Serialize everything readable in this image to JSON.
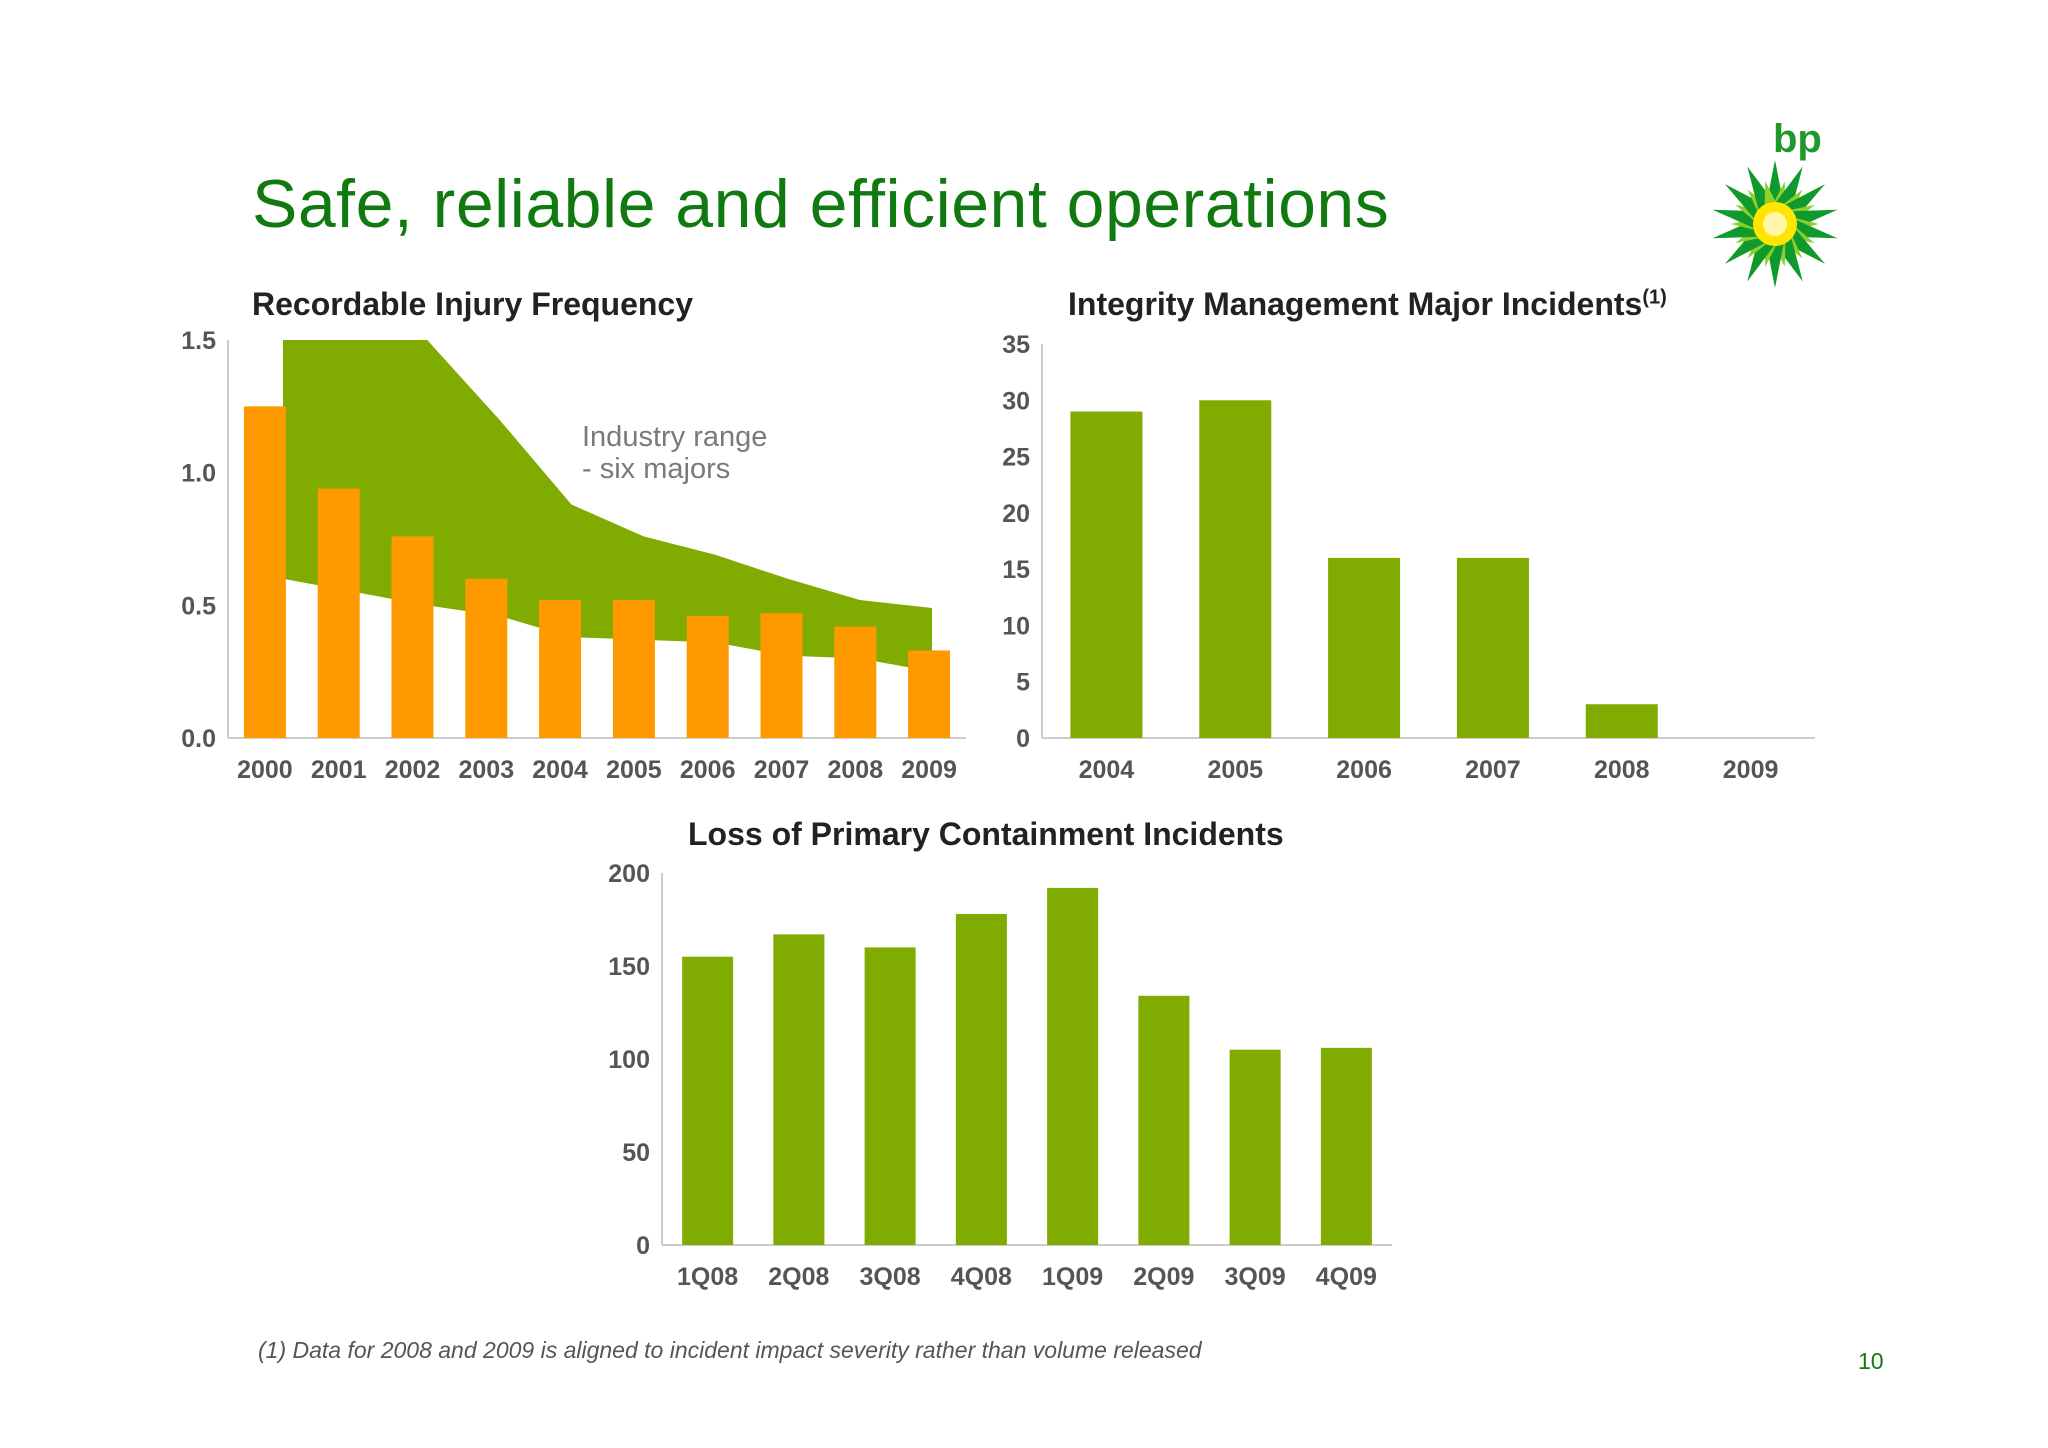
{
  "slide": {
    "title": "Safe, reliable and efficient operations",
    "footnote": "(1)  Data for 2008 and 2009 is aligned to incident impact severity rather than volume released",
    "page_number": "10",
    "logo_text": "bp"
  },
  "colors": {
    "green_title": "#107a10",
    "bar_green": "#80ab00",
    "area_green": "#80ab00",
    "bar_orange": "#ff9900",
    "axis_line": "#cccccc"
  },
  "chart_data": [
    {
      "id": "rif",
      "type": "bar",
      "title": "Recordable Injury Frequency",
      "categories": [
        "2000",
        "2001",
        "2002",
        "2003",
        "2004",
        "2005",
        "2006",
        "2007",
        "2008",
        "2009"
      ],
      "series": [
        {
          "values": [
            1.25,
            0.94,
            0.76,
            0.6,
            0.52,
            0.52,
            0.46,
            0.47,
            0.42,
            0.33
          ]
        }
      ],
      "band": {
        "label_line1": "Industry range",
        "label_line2": "- six majors",
        "upper": [
          1.5,
          1.5,
          1.5,
          1.2,
          0.88,
          0.76,
          0.69,
          0.6,
          0.52,
          0.49
        ],
        "lower": [
          0.6,
          0.55,
          0.5,
          0.46,
          0.38,
          0.37,
          0.36,
          0.31,
          0.3,
          0.25
        ]
      },
      "ylim": [
        0,
        1.5
      ],
      "yticks": [
        "0.0",
        "0.5",
        "1.0",
        "1.5"
      ],
      "ytick_values": [
        0,
        0.5,
        1.0,
        1.5
      ],
      "grid": false
    },
    {
      "id": "imm",
      "type": "bar",
      "title": "Integrity Management Major Incidents",
      "title_sup": "(1)",
      "categories": [
        "2004",
        "2005",
        "2006",
        "2007",
        "2008",
        "2009"
      ],
      "series": [
        {
          "values": [
            29,
            30,
            16,
            16,
            3,
            0
          ]
        }
      ],
      "ylim": [
        0,
        35
      ],
      "yticks": [
        "0",
        "5",
        "10",
        "15",
        "20",
        "25",
        "30",
        "35"
      ],
      "ytick_values": [
        0,
        5,
        10,
        15,
        20,
        25,
        30,
        35
      ],
      "grid": false
    },
    {
      "id": "lopc",
      "type": "bar",
      "title": "Loss of Primary Containment Incidents",
      "categories": [
        "1Q08",
        "2Q08",
        "3Q08",
        "4Q08",
        "1Q09",
        "2Q09",
        "3Q09",
        "4Q09"
      ],
      "series": [
        {
          "values": [
            155,
            167,
            160,
            178,
            192,
            134,
            105,
            106
          ]
        }
      ],
      "ylim": [
        0,
        200
      ],
      "yticks": [
        "0",
        "50",
        "100",
        "150",
        "200"
      ],
      "ytick_values": [
        0,
        50,
        100,
        150,
        200
      ],
      "grid": false
    }
  ]
}
